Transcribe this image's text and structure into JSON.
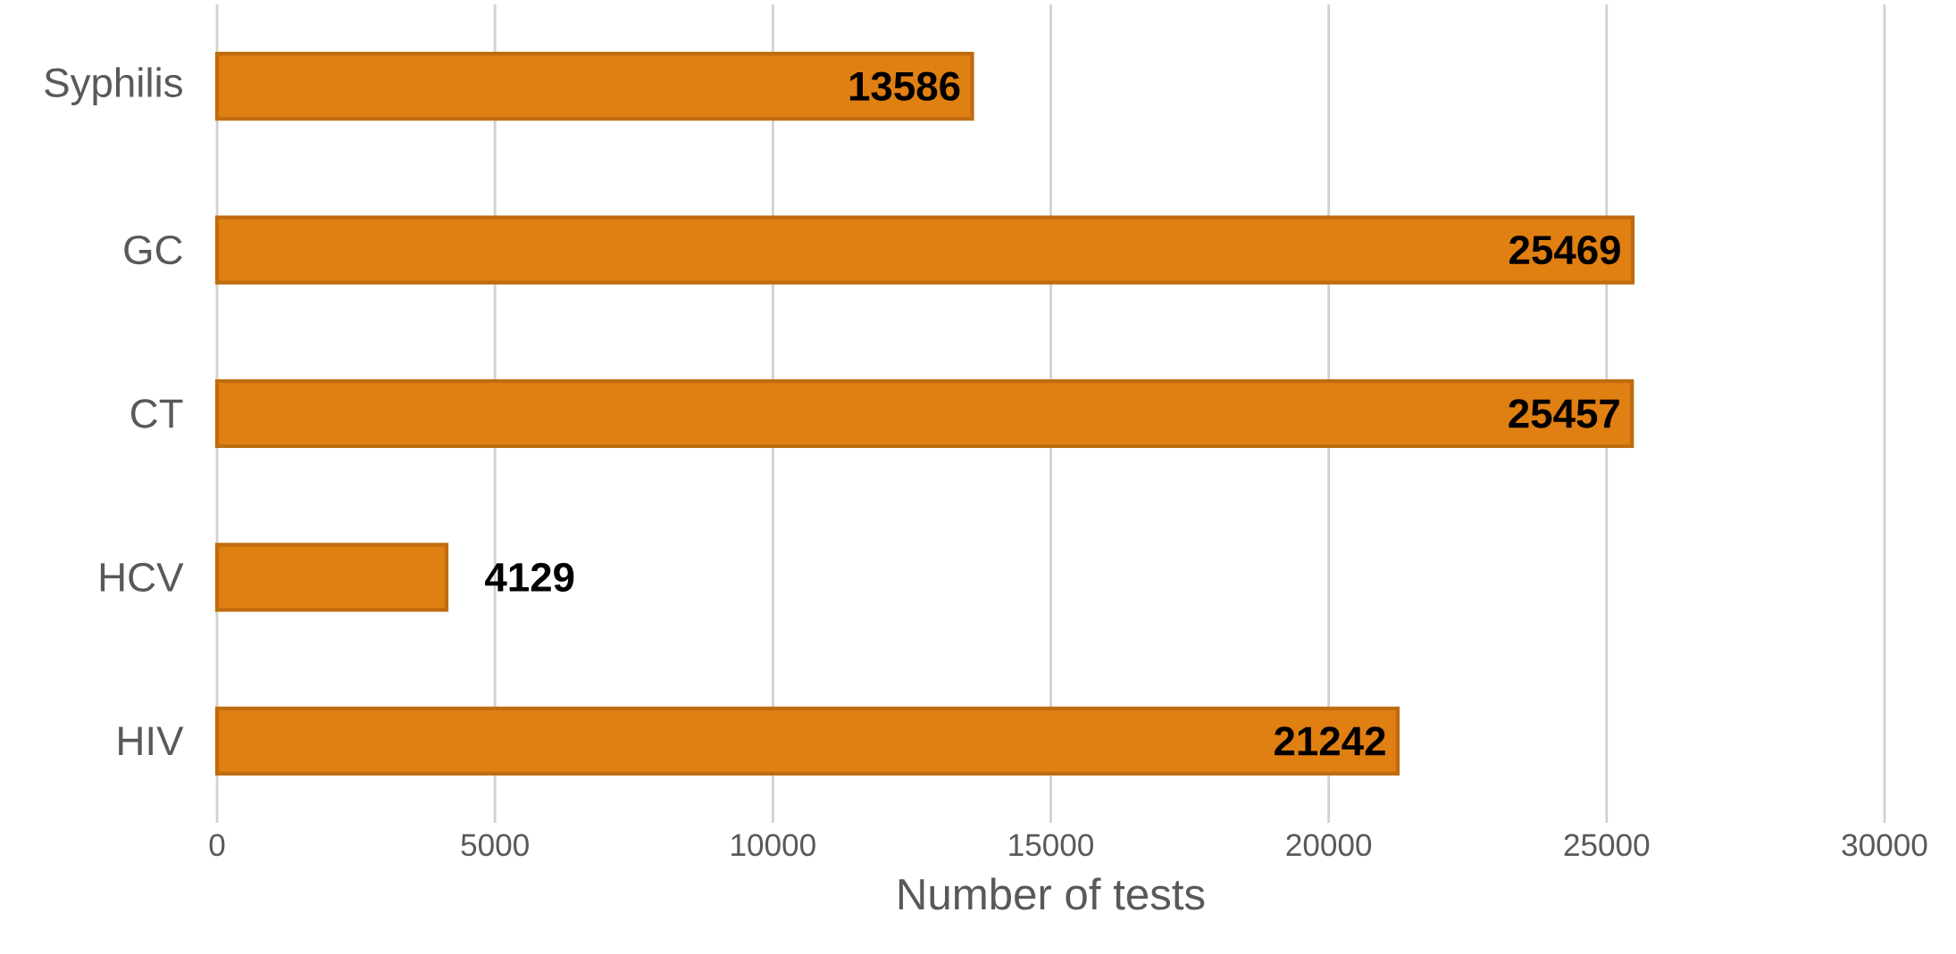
{
  "chart_data": {
    "type": "bar",
    "orientation": "horizontal",
    "xlabel": "Number of tests",
    "categories": [
      "Syphilis",
      "GC",
      "CT",
      "HCV",
      "HIV"
    ],
    "values": [
      13586,
      25469,
      25457,
      4129,
      21242
    ],
    "color": "#e07f12",
    "xlim": [
      0,
      30000
    ],
    "xticks": [
      0,
      5000,
      10000,
      15000,
      20000,
      25000,
      30000
    ],
    "grid": "x",
    "data_labels": true
  }
}
